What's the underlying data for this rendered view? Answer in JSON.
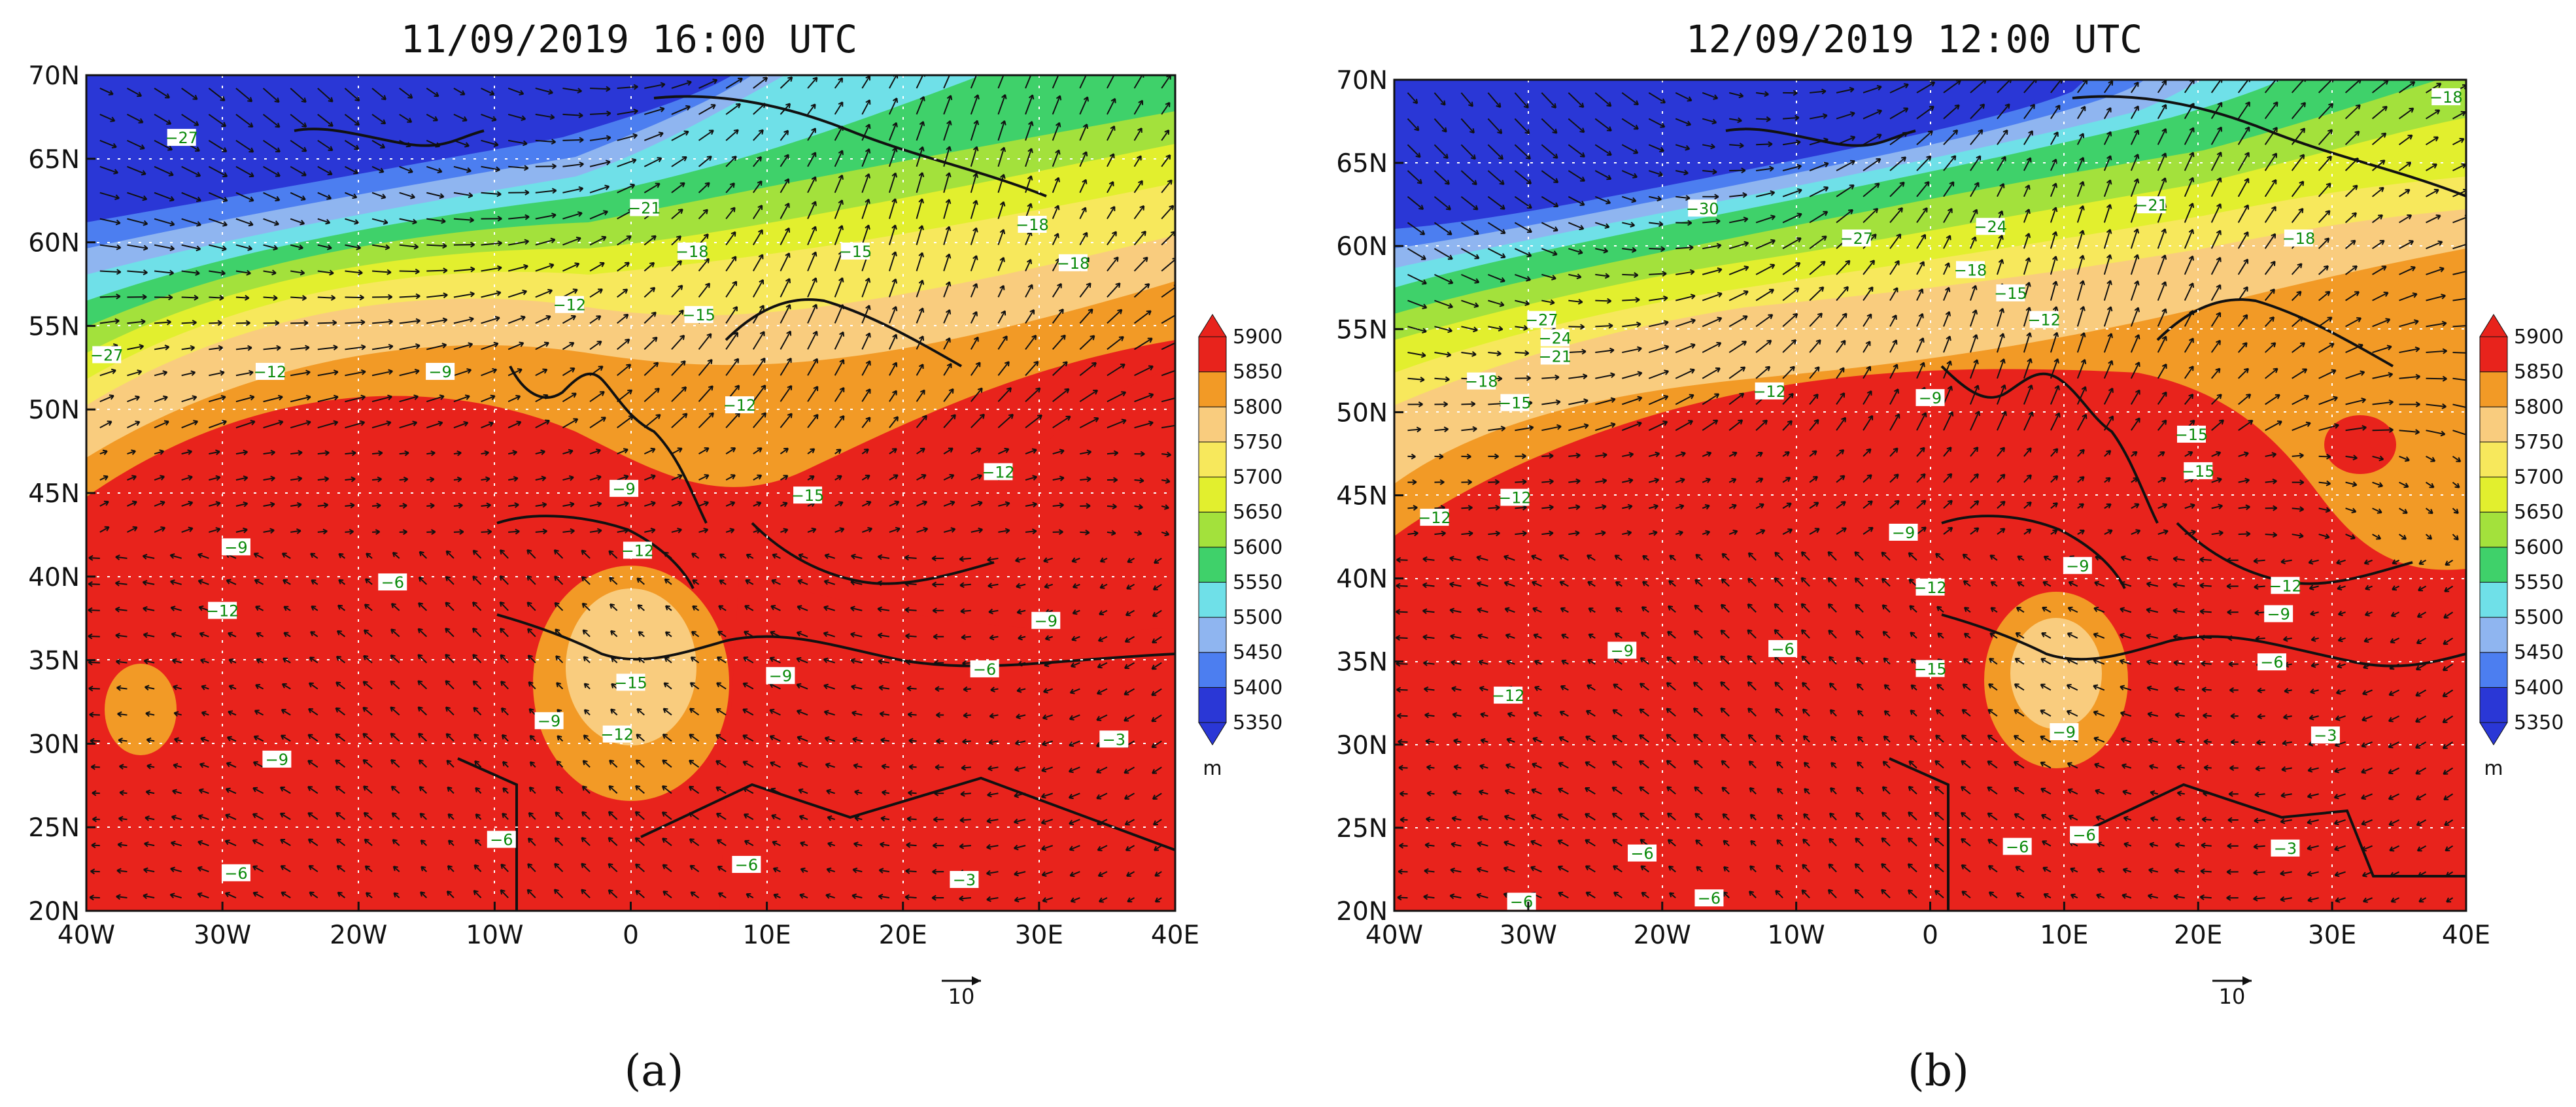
{
  "panels": [
    {
      "title": "11/09/2019 16:00 UTC",
      "caption": "(a)",
      "temp_labels": [
        {
          "text": "−27",
          "lon": -33,
          "lat": 66.2
        },
        {
          "text": "−21",
          "lon": 1,
          "lat": 62
        },
        {
          "text": "−18",
          "lon": 4.5,
          "lat": 59.4
        },
        {
          "text": "−15",
          "lon": 16.5,
          "lat": 59.4
        },
        {
          "text": "−18",
          "lon": 29.5,
          "lat": 61
        },
        {
          "text": "−18",
          "lon": 32.5,
          "lat": 58.7
        },
        {
          "text": "−12",
          "lon": -4.5,
          "lat": 56.2
        },
        {
          "text": "−15",
          "lon": 5,
          "lat": 55.6
        },
        {
          "text": "−27",
          "lon": -38.5,
          "lat": 53.2
        },
        {
          "text": "−12",
          "lon": -26.5,
          "lat": 52.2
        },
        {
          "text": "−9",
          "lon": -14,
          "lat": 52.2
        },
        {
          "text": "−12",
          "lon": 8,
          "lat": 50.2
        },
        {
          "text": "−12",
          "lon": 27,
          "lat": 46.2
        },
        {
          "text": "−9",
          "lon": -0.5,
          "lat": 45.2
        },
        {
          "text": "−15",
          "lon": 13,
          "lat": 44.8
        },
        {
          "text": "−9",
          "lon": -29,
          "lat": 41.7
        },
        {
          "text": "−12",
          "lon": 0.5,
          "lat": 41.5
        },
        {
          "text": "−6",
          "lon": -17.5,
          "lat": 39.6
        },
        {
          "text": "−12",
          "lon": -30,
          "lat": 37.9
        },
        {
          "text": "−9",
          "lon": 30.5,
          "lat": 37.3
        },
        {
          "text": "−6",
          "lon": 26,
          "lat": 34.4
        },
        {
          "text": "−9",
          "lon": 11,
          "lat": 34
        },
        {
          "text": "−15",
          "lon": 0,
          "lat": 33.6
        },
        {
          "text": "−9",
          "lon": -6,
          "lat": 31.3
        },
        {
          "text": "−12",
          "lon": -1,
          "lat": 30.5
        },
        {
          "text": "−3",
          "lon": 35.5,
          "lat": 30.2
        },
        {
          "text": "−9",
          "lon": -26,
          "lat": 29
        },
        {
          "text": "−6",
          "lon": -9.5,
          "lat": 24.2
        },
        {
          "text": "−6",
          "lon": 8.5,
          "lat": 22.7
        },
        {
          "text": "−6",
          "lon": -29,
          "lat": 22.2
        },
        {
          "text": "−3",
          "lon": 24.5,
          "lat": 21.8
        }
      ]
    },
    {
      "title": "12/09/2019 12:00 UTC",
      "caption": "(b)",
      "temp_labels": [
        {
          "text": "−18",
          "lon": 38.5,
          "lat": 68.9
        },
        {
          "text": "−30",
          "lon": -17,
          "lat": 62.2
        },
        {
          "text": "−21",
          "lon": 16.5,
          "lat": 62.4
        },
        {
          "text": "−24",
          "lon": 4.5,
          "lat": 61.1
        },
        {
          "text": "−27",
          "lon": -5.5,
          "lat": 60.4
        },
        {
          "text": "−18",
          "lon": 27.5,
          "lat": 60.4
        },
        {
          "text": "−18",
          "lon": 3,
          "lat": 58.5
        },
        {
          "text": "−15",
          "lon": 6,
          "lat": 57.1
        },
        {
          "text": "−12",
          "lon": 8.5,
          "lat": 55.5
        },
        {
          "text": "−27",
          "lon": -29,
          "lat": 55.5
        },
        {
          "text": "−24",
          "lon": -28,
          "lat": 54.4
        },
        {
          "text": "−21",
          "lon": -28,
          "lat": 53.3
        },
        {
          "text": "−18",
          "lon": -33.5,
          "lat": 51.8
        },
        {
          "text": "−15",
          "lon": -31,
          "lat": 50.5
        },
        {
          "text": "−12",
          "lon": -12,
          "lat": 51.2
        },
        {
          "text": "−9",
          "lon": 0,
          "lat": 50.8
        },
        {
          "text": "−15",
          "lon": 19.5,
          "lat": 48.6
        },
        {
          "text": "−15",
          "lon": 20,
          "lat": 46.4
        },
        {
          "text": "−12",
          "lon": -31,
          "lat": 44.8
        },
        {
          "text": "−12",
          "lon": -37,
          "lat": 43.6
        },
        {
          "text": "−9",
          "lon": -2,
          "lat": 42.7
        },
        {
          "text": "−9",
          "lon": 11,
          "lat": 40.7
        },
        {
          "text": "−12",
          "lon": 0,
          "lat": 39.4
        },
        {
          "text": "−12",
          "lon": 26.5,
          "lat": 39.5
        },
        {
          "text": "−9",
          "lon": 26,
          "lat": 37.8
        },
        {
          "text": "−9",
          "lon": -23,
          "lat": 35.6
        },
        {
          "text": "−6",
          "lon": -11,
          "lat": 35.7
        },
        {
          "text": "−6",
          "lon": 25.5,
          "lat": 34.9
        },
        {
          "text": "−15",
          "lon": 0,
          "lat": 34.5
        },
        {
          "text": "−12",
          "lon": -31.5,
          "lat": 32.9
        },
        {
          "text": "−9",
          "lon": 10,
          "lat": 30.7
        },
        {
          "text": "−3",
          "lon": 29.5,
          "lat": 30.5
        },
        {
          "text": "−6",
          "lon": 11.5,
          "lat": 24.5
        },
        {
          "text": "−6",
          "lon": 6.5,
          "lat": 23.8
        },
        {
          "text": "−6",
          "lon": -21.5,
          "lat": 23.4
        },
        {
          "text": "−3",
          "lon": 26.5,
          "lat": 23.7
        },
        {
          "text": "−6",
          "lon": -16.5,
          "lat": 20.7
        },
        {
          "text": "−6",
          "lon": -30.5,
          "lat": 20.5
        }
      ]
    }
  ],
  "map": {
    "x_ticks": [
      "40W",
      "30W",
      "20W",
      "10W",
      "0",
      "10E",
      "20E",
      "30E",
      "40E"
    ],
    "y_ticks": [
      "70N",
      "65N",
      "60N",
      "55N",
      "50N",
      "45N",
      "40N",
      "35N",
      "30N",
      "25N",
      "20N"
    ],
    "lon_range": [
      -40,
      40
    ],
    "lat_range": [
      20,
      70
    ],
    "vector_scale_label": "10"
  },
  "colorbar": {
    "levels": [
      "5350",
      "5400",
      "5450",
      "5500",
      "5550",
      "5600",
      "5650",
      "5700",
      "5750",
      "5800",
      "5850",
      "5900"
    ],
    "colors": [
      "#2a37d6",
      "#4c7ef0",
      "#8fb5f0",
      "#6fe0e8",
      "#3fd16a",
      "#a3e13c",
      "#e2ef2e",
      "#f7e85c",
      "#f9cc7e",
      "#f29a26",
      "#e8231c"
    ],
    "unit": "m"
  }
}
